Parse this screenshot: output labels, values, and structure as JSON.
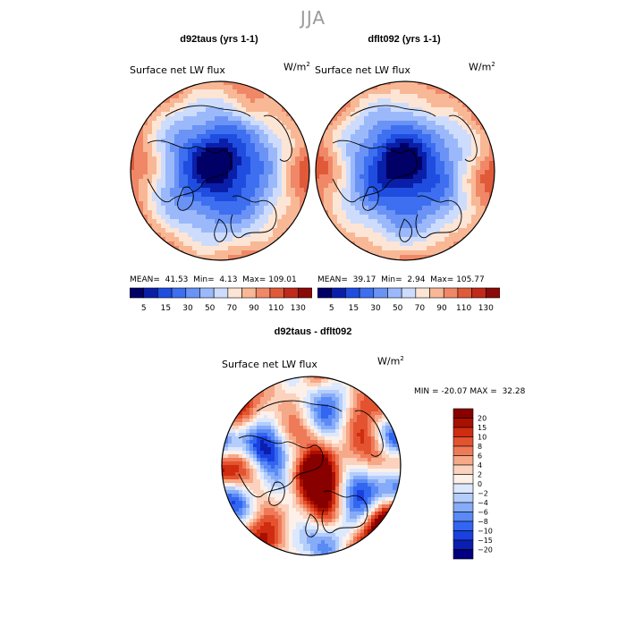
{
  "figure": {
    "season": "JJA"
  },
  "colors": {
    "blue_scale": [
      "#000066",
      "#0a1fa8",
      "#1f4de0",
      "#3d6ff0",
      "#6a93f5",
      "#9bb9fa",
      "#cddcfc",
      "#fde5d5",
      "#f8b895",
      "#f08868",
      "#e05a3a",
      "#c02a1a",
      "#8a0a0a"
    ],
    "diff_scale": [
      "#000080",
      "#0a1fb0",
      "#1a40e0",
      "#3366f0",
      "#5a8af5",
      "#86abf8",
      "#b4cdfb",
      "#dce8fd",
      "#fdf0e8",
      "#fbd2bd",
      "#f6a988",
      "#ef7a58",
      "#e45330",
      "#d02c10",
      "#a81000",
      "#880000"
    ]
  },
  "chart_data": [
    {
      "type": "heatmap",
      "projection": "north-polar-stereographic",
      "title": "d92taus (yrs 1-1)",
      "field": "Surface net LW flux",
      "units": "W/m",
      "units_sup": "2",
      "stats": {
        "mean_label": "MEAN=",
        "mean": "41.53",
        "min_label": "Min=",
        "min": "4.13",
        "max_label": "Max=",
        "max": "109.01"
      },
      "colorbar": {
        "levels": [
          5,
          15,
          30,
          50,
          70,
          90,
          110,
          130
        ],
        "tick_labels": [
          "5",
          "15",
          "30",
          "50",
          "70",
          "90",
          "110",
          "130"
        ]
      }
    },
    {
      "type": "heatmap",
      "projection": "north-polar-stereographic",
      "title": "dflt092 (yrs 1-1)",
      "field": "Surface net LW flux",
      "units": "W/m",
      "units_sup": "2",
      "stats": {
        "mean_label": "MEAN=",
        "mean": "39.17",
        "min_label": "Min=",
        "min": "2.94",
        "max_label": "Max=",
        "max": "105.77"
      },
      "colorbar": {
        "levels": [
          5,
          15,
          30,
          50,
          70,
          90,
          110,
          130
        ],
        "tick_labels": [
          "5",
          "15",
          "30",
          "50",
          "70",
          "90",
          "110",
          "130"
        ]
      }
    },
    {
      "type": "heatmap",
      "projection": "north-polar-stereographic",
      "title": "d92taus - dflt092",
      "field": "Surface net LW flux",
      "units": "W/m",
      "units_sup": "2",
      "stats": {
        "min_label": "MIN =",
        "min": "-20.07",
        "max_label": "MAX =",
        "max": "32.28"
      },
      "colorbar": {
        "levels": [
          -20,
          -15,
          -10,
          -8,
          -6,
          -4,
          -2,
          0,
          2,
          4,
          6,
          8,
          10,
          15,
          20
        ],
        "tick_labels": [
          "20",
          "15",
          "10",
          "8",
          "6",
          "4",
          "2",
          "0",
          "−2",
          "−4",
          "−6",
          "−8",
          "−10",
          "−15",
          "−20"
        ]
      }
    }
  ]
}
